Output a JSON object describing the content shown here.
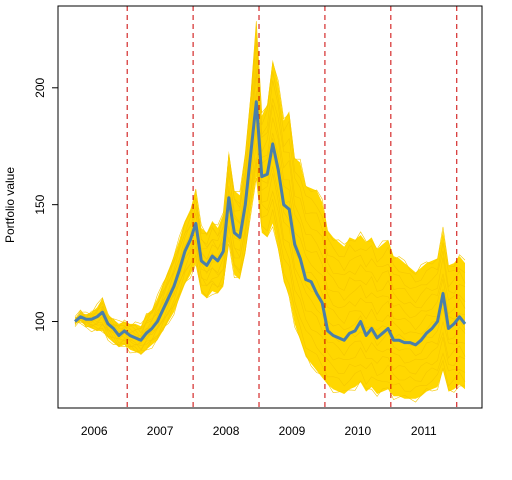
{
  "chart_data": {
    "type": "line",
    "title": "",
    "xlabel": "",
    "ylabel": "Portfolio value",
    "xlim": [
      0,
      72
    ],
    "ylim": [
      63,
      235
    ],
    "y_ticks": [
      100,
      150,
      200
    ],
    "x_tick_labels": [
      {
        "label": "2006",
        "pos": 3.5
      },
      {
        "label": "2007",
        "pos": 15.5
      },
      {
        "label": "2008",
        "pos": 27.5
      },
      {
        "label": "2009",
        "pos": 39.5
      },
      {
        "label": "2010",
        "pos": 51.5
      },
      {
        "label": "2011",
        "pos": 63.5
      }
    ],
    "year_boundaries": [
      9.5,
      21.5,
      33.5,
      45.5,
      57.5,
      69.5
    ],
    "colors": {
      "band": "#FFD700",
      "main_line": "#4A7FAA",
      "boundary": "#CC0000"
    },
    "series": [
      {
        "role": "main",
        "x": [
          0,
          1,
          2,
          3,
          4,
          5,
          6,
          7,
          8,
          9,
          10,
          11,
          12,
          13,
          14,
          15,
          16,
          17,
          18,
          19,
          20,
          21,
          22,
          23,
          24,
          25,
          26,
          27,
          28,
          29,
          30,
          31,
          32,
          33,
          34,
          35,
          36,
          37,
          38,
          39,
          40,
          41,
          42,
          43,
          44,
          45,
          46,
          47,
          48,
          49,
          50,
          51,
          52,
          53,
          54,
          55,
          56,
          57,
          58,
          59,
          60,
          61,
          62,
          63,
          64,
          65,
          66,
          67,
          68,
          69,
          70,
          71
        ],
        "values": [
          100,
          102,
          101,
          101,
          102,
          104,
          99,
          97,
          94,
          96,
          94,
          93,
          92,
          95,
          97,
          100,
          105,
          110,
          115,
          122,
          130,
          135,
          142,
          126,
          124,
          128,
          126,
          130,
          153,
          138,
          136,
          150,
          172,
          194,
          162,
          163,
          176,
          165,
          150,
          148,
          133,
          127,
          118,
          117,
          112,
          108,
          96,
          94,
          93,
          92,
          95,
          96,
          100,
          94,
          97,
          93,
          95,
          97,
          92,
          92,
          91,
          91,
          90,
          92,
          95,
          97,
          100,
          112,
          97,
          99,
          102,
          99
        ]
      },
      {
        "role": "band-upper",
        "x": [
          0,
          1,
          2,
          3,
          4,
          5,
          6,
          7,
          8,
          9,
          10,
          11,
          12,
          13,
          14,
          15,
          16,
          17,
          18,
          19,
          20,
          21,
          22,
          23,
          24,
          25,
          26,
          27,
          28,
          29,
          30,
          31,
          32,
          33,
          34,
          35,
          36,
          37,
          38,
          39,
          40,
          41,
          42,
          43,
          44,
          45,
          46,
          47,
          48,
          49,
          50,
          51,
          52,
          53,
          54,
          55,
          56,
          57,
          58,
          59,
          60,
          61,
          62,
          63,
          64,
          65,
          66,
          67,
          68,
          69,
          70,
          71
        ],
        "values": [
          101,
          104,
          103,
          104,
          106,
          110,
          103,
          101,
          99,
          100,
          99,
          99,
          98,
          103,
          105,
          110,
          116,
          122,
          128,
          135,
          143,
          148,
          156,
          140,
          138,
          143,
          140,
          146,
          173,
          156,
          154,
          172,
          198,
          228,
          188,
          193,
          212,
          202,
          186,
          190,
          170,
          168,
          158,
          157,
          156,
          151,
          139,
          136,
          134,
          132,
          136,
          135,
          137,
          134,
          136,
          131,
          133,
          135,
          128,
          127,
          125,
          123,
          121,
          123,
          125,
          126,
          127,
          139,
          124,
          125,
          128,
          125
        ]
      },
      {
        "role": "band-lower",
        "x": [
          0,
          1,
          2,
          3,
          4,
          5,
          6,
          7,
          8,
          9,
          10,
          11,
          12,
          13,
          14,
          15,
          16,
          17,
          18,
          19,
          20,
          21,
          22,
          23,
          24,
          25,
          26,
          27,
          28,
          29,
          30,
          31,
          32,
          33,
          34,
          35,
          36,
          37,
          38,
          39,
          40,
          41,
          42,
          43,
          44,
          45,
          46,
          47,
          48,
          49,
          50,
          51,
          52,
          53,
          54,
          55,
          56,
          57,
          58,
          59,
          60,
          61,
          62,
          63,
          64,
          65,
          66,
          67,
          68,
          69,
          70,
          71
        ],
        "values": [
          99,
          100,
          98,
          97,
          96,
          96,
          93,
          91,
          89,
          90,
          88,
          87,
          86,
          88,
          90,
          92,
          96,
          100,
          104,
          110,
          116,
          120,
          125,
          112,
          110,
          113,
          112,
          115,
          134,
          120,
          118,
          129,
          147,
          162,
          138,
          136,
          142,
          131,
          117,
          111,
          99,
          92,
          85,
          82,
          79,
          76,
          73,
          71,
          70,
          69,
          71,
          72,
          74,
          70,
          72,
          69,
          70,
          71,
          68,
          68,
          67,
          67,
          67,
          68,
          70,
          71,
          72,
          79,
          70,
          71,
          73,
          71
        ]
      }
    ]
  }
}
